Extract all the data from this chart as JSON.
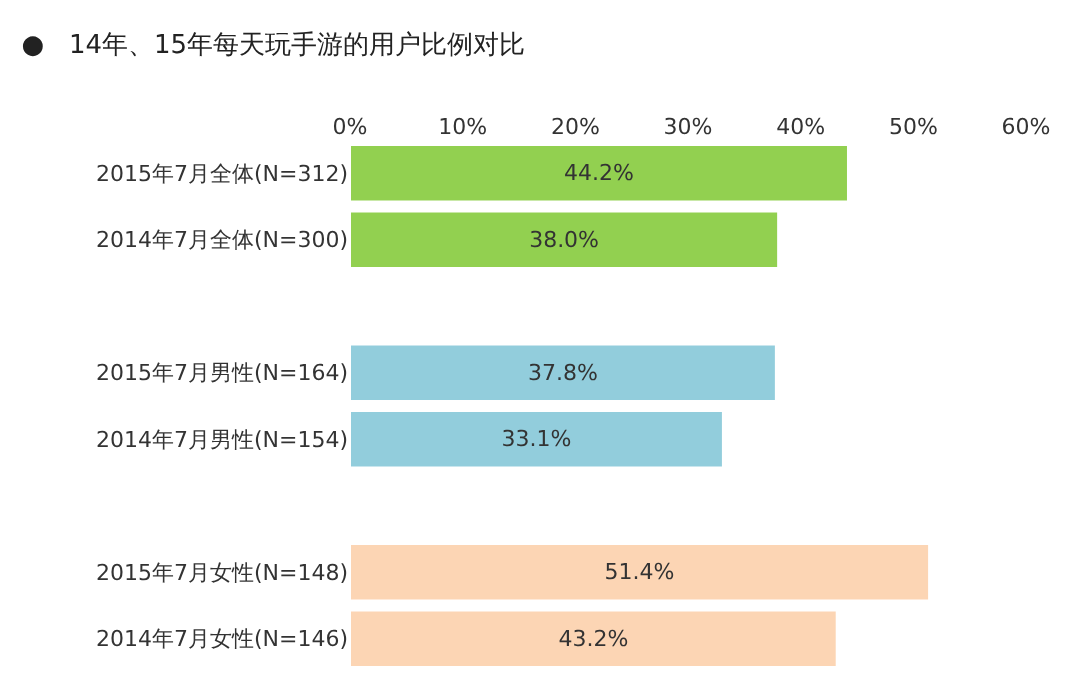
{
  "chart_data": {
    "type": "bar",
    "orientation": "horizontal",
    "title": "●   14年、15年每天玩手游的用户比例对比",
    "categories": [
      "2015年7月全体(N=312)",
      "2014年7月全体(N=300)",
      null,
      "2015年7月男性(N=164)",
      "2014年7月男性(N=154)",
      null,
      "2015年7月女性(N=148)",
      "2014年7月女性(N=146)"
    ],
    "values": [
      44.2,
      38.0,
      null,
      37.8,
      33.1,
      null,
      51.4,
      43.2
    ],
    "colors": [
      "#92d050",
      "#92d050",
      null,
      "#92cddc",
      "#92cddc",
      null,
      "#fcd5b4",
      "#fcd5b4"
    ],
    "value_labels": [
      "44.2%",
      "38.0%",
      null,
      "37.8%",
      "33.1%",
      null,
      "51.4%",
      "43.2%"
    ],
    "xlim": [
      0,
      60
    ],
    "xticks": [
      {
        "value": 0,
        "label": "0%"
      },
      {
        "value": 10,
        "label": "10%"
      },
      {
        "value": 20,
        "label": "20%"
      },
      {
        "value": 30,
        "label": "30%"
      },
      {
        "value": 40,
        "label": "40%"
      },
      {
        "value": 50,
        "label": "50%"
      },
      {
        "value": 60,
        "label": "60%"
      }
    ],
    "legend": false
  }
}
